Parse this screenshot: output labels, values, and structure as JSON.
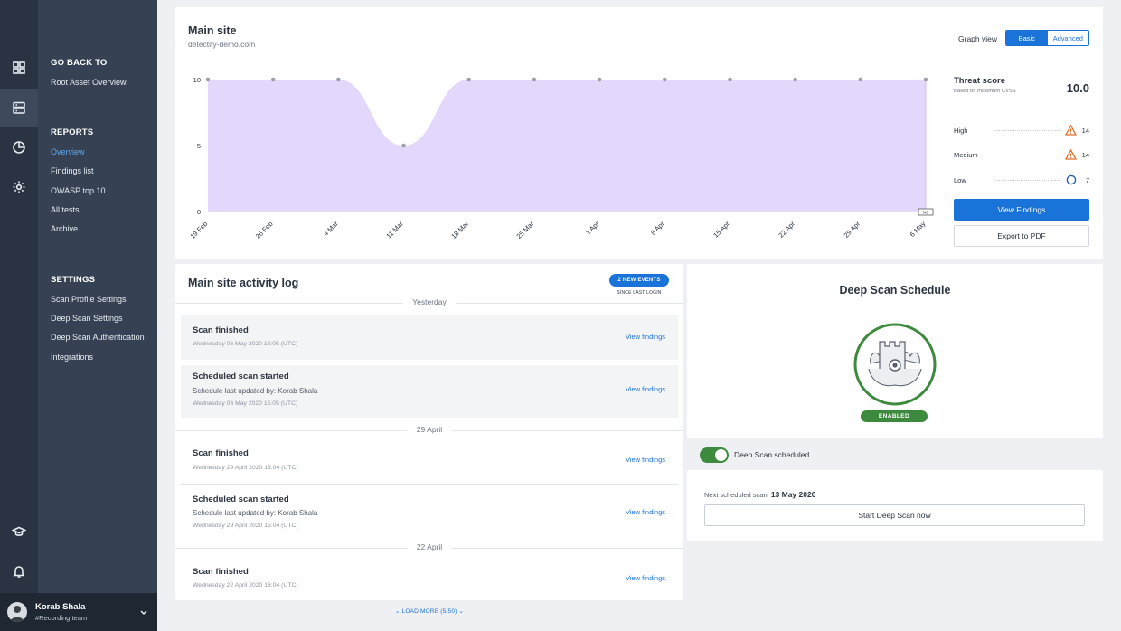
{
  "rail": {
    "icons": [
      "grid-icon",
      "server-icon",
      "pie-chart-icon",
      "gear-icon",
      "graduation-cap-icon",
      "bell-icon"
    ]
  },
  "nav": {
    "back_heading": "GO BACK TO",
    "back_link": "Root Asset Overview",
    "reports_heading": "REPORTS",
    "reports": [
      "Overview",
      "Findings list",
      "OWASP top 10",
      "All tests",
      "Archive"
    ],
    "settings_heading": "SETTINGS",
    "settings": [
      "Scan Profile Settings",
      "Deep Scan Settings",
      "Deep Scan Authentication",
      "Integrations"
    ]
  },
  "user": {
    "name": "Korab Shala",
    "team": "#Recording team"
  },
  "chart_panel": {
    "title": "Main site",
    "subtitle": "detectify-demo.com",
    "graph_view_label": "Graph view",
    "graph_view_options": [
      "Basic",
      "Advanced"
    ],
    "graph_view_selected": "Basic"
  },
  "chart_data": {
    "type": "area",
    "x": [
      "19 Feb",
      "26 Feb",
      "4 Mar",
      "11 Mar",
      "18 Mar",
      "25 Mar",
      "1 Apr",
      "8 Apr",
      "15 Apr",
      "22 Apr",
      "29 Apr",
      "6 May"
    ],
    "series": [
      {
        "values": [
          10,
          10,
          10,
          5,
          10,
          10,
          10,
          10,
          10,
          10,
          10,
          10
        ]
      }
    ],
    "y_ticks": [
      0,
      5,
      10
    ],
    "ylim": [
      0,
      10
    ],
    "fill_color": "#e3d8fb",
    "point_color": "#9aa0a8",
    "end_marker_label": "NO"
  },
  "threat": {
    "title": "Threat score",
    "subtitle": "Based on maximum CVSS",
    "score": "10.0",
    "levels": [
      {
        "label": "High",
        "count": "14",
        "icon": "warning-triangle-icon"
      },
      {
        "label": "Medium",
        "count": "14",
        "icon": "warning-triangle-icon"
      },
      {
        "label": "Low",
        "count": "7",
        "icon": "circle-icon"
      }
    ],
    "view_findings_label": "View Findings",
    "export_label": "Export to PDF"
  },
  "activity": {
    "title": "Main site activity log",
    "events_badge": "2 NEW EVENTS",
    "events_sub": "SINCE LAST LOGIN",
    "days": [
      "Yesterday",
      "29 April",
      "22 April"
    ],
    "entries": [
      {
        "title": "Scan finished",
        "line": "",
        "date": "Wednesday 06 May 2020 16:05 (UTC)",
        "link": "View findings"
      },
      {
        "title": "Scheduled scan started",
        "line": "Schedule last updated by: Korab Shala",
        "date": "Wednesday 06 May 2020 15:05 (UTC)",
        "link": "View findings"
      },
      {
        "title": "Scan finished",
        "line": "",
        "date": "Wednesday 29 April 2020 16:04 (UTC)",
        "link": "View findings"
      },
      {
        "title": "Scheduled scan started",
        "line": "Schedule last updated by: Korab Shala",
        "date": "Wednesday 29 April 2020 15:04 (UTC)",
        "link": "View findings"
      },
      {
        "title": "Scan finished",
        "line": "",
        "date": "Wednesday 22 April 2020 16:04 (UTC)",
        "link": "View findings"
      }
    ],
    "load_more": "LOAD MORE (5/50)"
  },
  "deep_scan": {
    "title": "Deep Scan Schedule",
    "status_badge": "ENABLED",
    "toggle_label": "Deep Scan scheduled",
    "toggle_on": true,
    "next_label": "Next scheduled scan:",
    "next_date": "13 May 2020",
    "start_button": "Start Deep Scan now",
    "accent_color": "#3d8a3e"
  }
}
